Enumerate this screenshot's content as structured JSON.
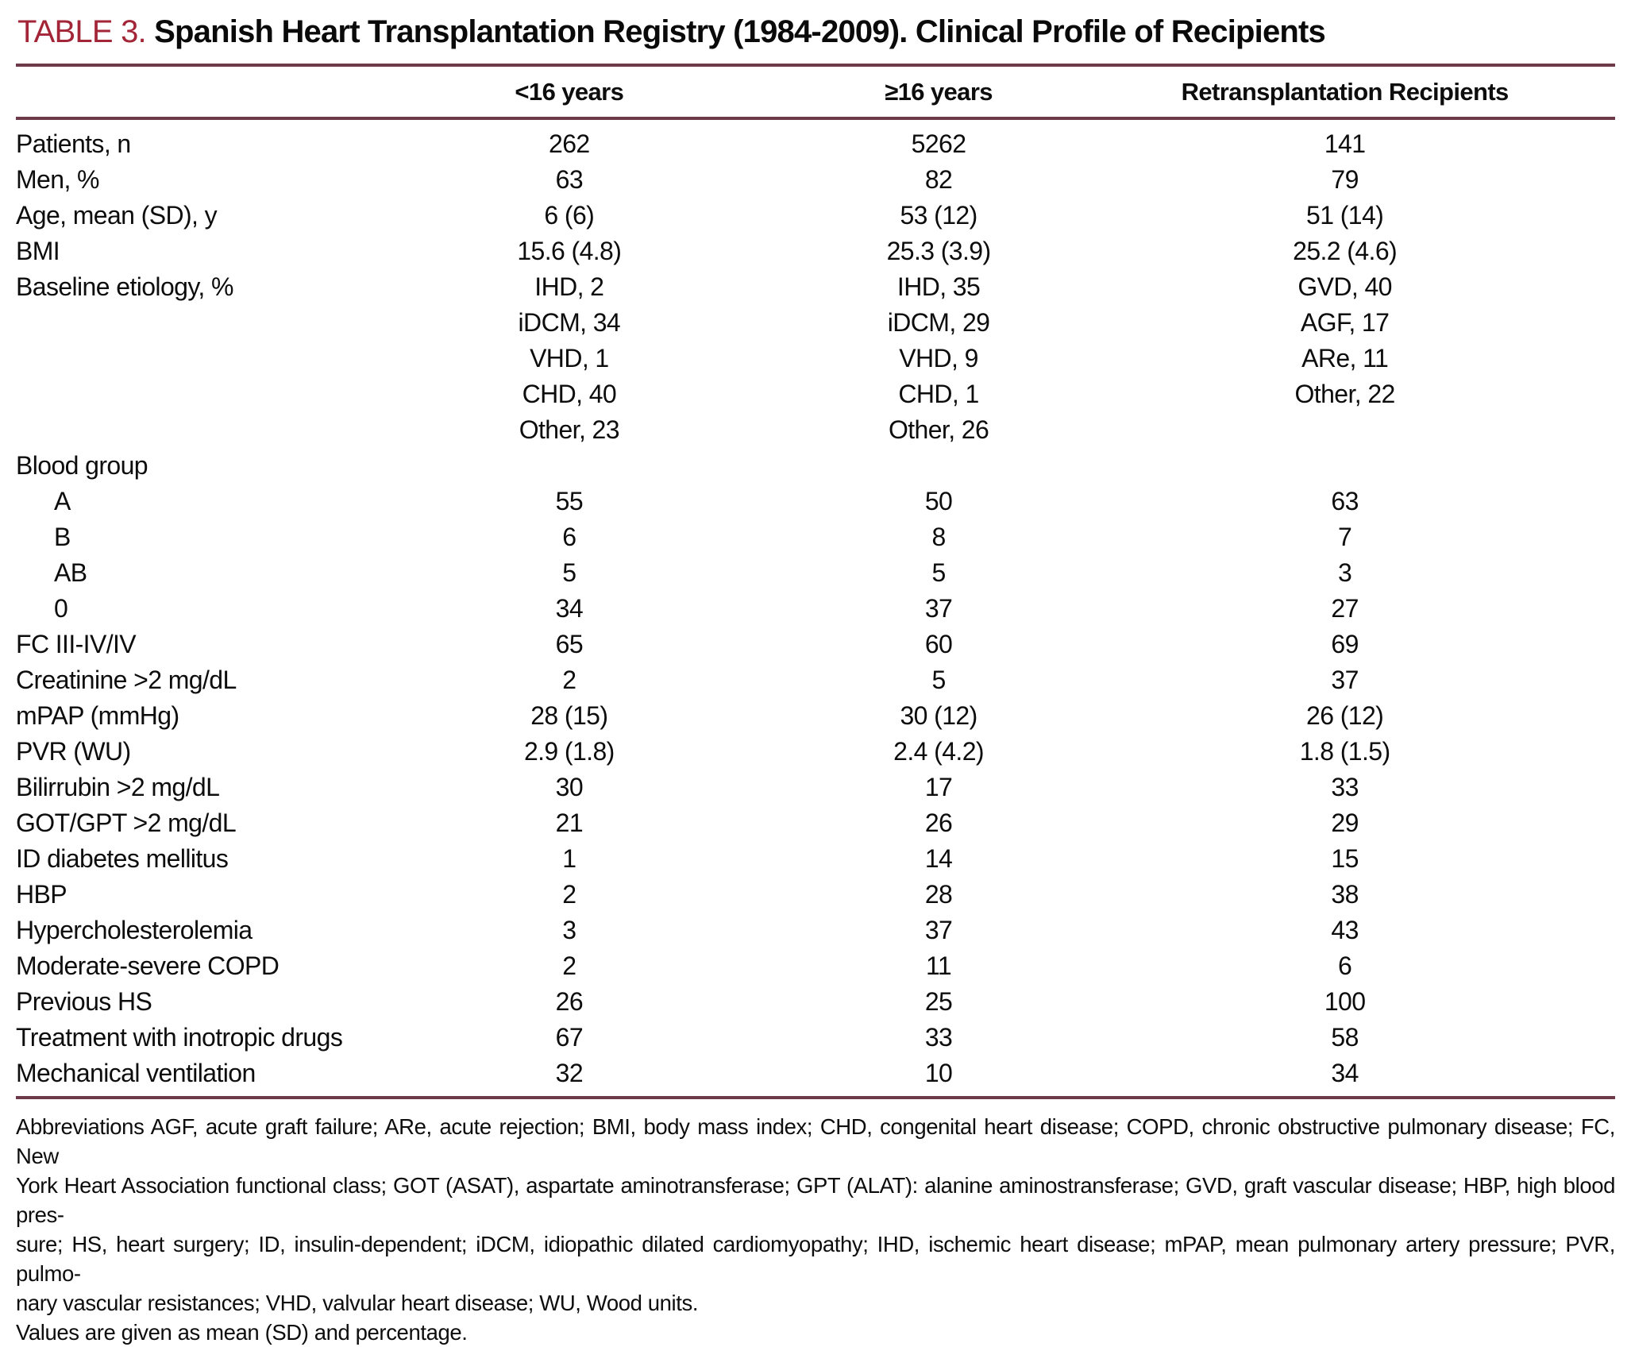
{
  "colors": {
    "accent": "#a32638",
    "rule": "#6d3a4a"
  },
  "title": {
    "tag": "TABLE 3.",
    "text": "Spanish Heart Transplantation Registry (1984-2009). Clinical Profile of Recipients"
  },
  "table": {
    "columns": [
      "<16 years",
      "≥16 years",
      "Retransplantation Recipients"
    ],
    "rows": [
      {
        "label": "Patients, n",
        "indent": false,
        "values": [
          "262",
          "5262",
          "141"
        ]
      },
      {
        "label": "Men, %",
        "indent": false,
        "values": [
          "63",
          "82",
          "79"
        ]
      },
      {
        "label": "Age, mean (SD), y",
        "indent": false,
        "values": [
          "6 (6)",
          "53 (12)",
          "51 (14)"
        ]
      },
      {
        "label": "BMI",
        "indent": false,
        "values": [
          "15.6 (4.8)",
          "25.3 (3.9)",
          "25.2 (4.6)"
        ]
      },
      {
        "label": "Baseline etiology, %",
        "indent": false,
        "values": [
          "IHD, 2",
          "IHD, 35",
          "GVD, 40"
        ]
      },
      {
        "label": "",
        "indent": false,
        "values": [
          "iDCM, 34",
          "iDCM, 29",
          "AGF, 17"
        ]
      },
      {
        "label": "",
        "indent": false,
        "values": [
          "VHD, 1",
          "VHD, 9",
          "ARe, 11"
        ]
      },
      {
        "label": "",
        "indent": false,
        "values": [
          "CHD, 40",
          "CHD, 1",
          "Other, 22"
        ]
      },
      {
        "label": "",
        "indent": false,
        "values": [
          "Other, 23",
          "Other, 26",
          ""
        ]
      },
      {
        "label": "Blood group",
        "indent": false,
        "values": [
          "",
          "",
          ""
        ]
      },
      {
        "label": "A",
        "indent": true,
        "values": [
          "55",
          "50",
          "63"
        ]
      },
      {
        "label": "B",
        "indent": true,
        "values": [
          "6",
          "8",
          "7"
        ]
      },
      {
        "label": "AB",
        "indent": true,
        "values": [
          "5",
          "5",
          "3"
        ]
      },
      {
        "label": "0",
        "indent": true,
        "values": [
          "34",
          "37",
          "27"
        ]
      },
      {
        "label": "FC III-IV/IV",
        "indent": false,
        "values": [
          "65",
          "60",
          "69"
        ]
      },
      {
        "label": "Creatinine >2 mg/dL",
        "indent": false,
        "values": [
          "2",
          "5",
          "37"
        ]
      },
      {
        "label": "mPAP (mmHg)",
        "indent": false,
        "values": [
          "28 (15)",
          "30 (12)",
          "26 (12)"
        ]
      },
      {
        "label": "PVR (WU)",
        "indent": false,
        "values": [
          "2.9 (1.8)",
          "2.4 (4.2)",
          "1.8 (1.5)"
        ]
      },
      {
        "label": "Bilirrubin >2 mg/dL",
        "indent": false,
        "values": [
          "30",
          "17",
          "33"
        ]
      },
      {
        "label": "GOT/GPT >2 mg/dL",
        "indent": false,
        "values": [
          "21",
          "26",
          "29"
        ]
      },
      {
        "label": "ID diabetes mellitus",
        "indent": false,
        "values": [
          "1",
          "14",
          "15"
        ]
      },
      {
        "label": "HBP",
        "indent": false,
        "values": [
          "2",
          "28",
          "38"
        ]
      },
      {
        "label": "Hypercholesterolemia",
        "indent": false,
        "values": [
          "3",
          "37",
          "43"
        ]
      },
      {
        "label": "Moderate-severe COPD",
        "indent": false,
        "values": [
          "2",
          "11",
          "6"
        ]
      },
      {
        "label": "Previous HS",
        "indent": false,
        "values": [
          "26",
          "25",
          "100"
        ]
      },
      {
        "label": "Treatment with inotropic drugs",
        "indent": false,
        "values": [
          "67",
          "33",
          "58"
        ]
      },
      {
        "label": "Mechanical ventilation",
        "indent": false,
        "values": [
          "32",
          "10",
          "34"
        ]
      }
    ]
  },
  "footnotes": [
    "Abbreviations AGF, acute graft failure; ARe, acute rejection; BMI, body mass index; CHD, congenital heart disease; COPD, chronic obstructive pulmonary disease; FC, New",
    "York Heart Association functional class; GOT (ASAT), aspartate aminotransferase; GPT (ALAT): alanine aminostransferase; GVD, graft vascular disease; HBP, high blood pres-",
    "sure; HS, heart surgery; ID, insulin-dependent; iDCM, idiopathic dilated cardiomyopathy; IHD, ischemic heart disease; mPAP, mean pulmonary artery pressure; PVR, pulmo-",
    "nary vascular resistances; VHD, valvular heart disease; WU, Wood units.",
    "Values are given as mean (SD) and percentage."
  ]
}
